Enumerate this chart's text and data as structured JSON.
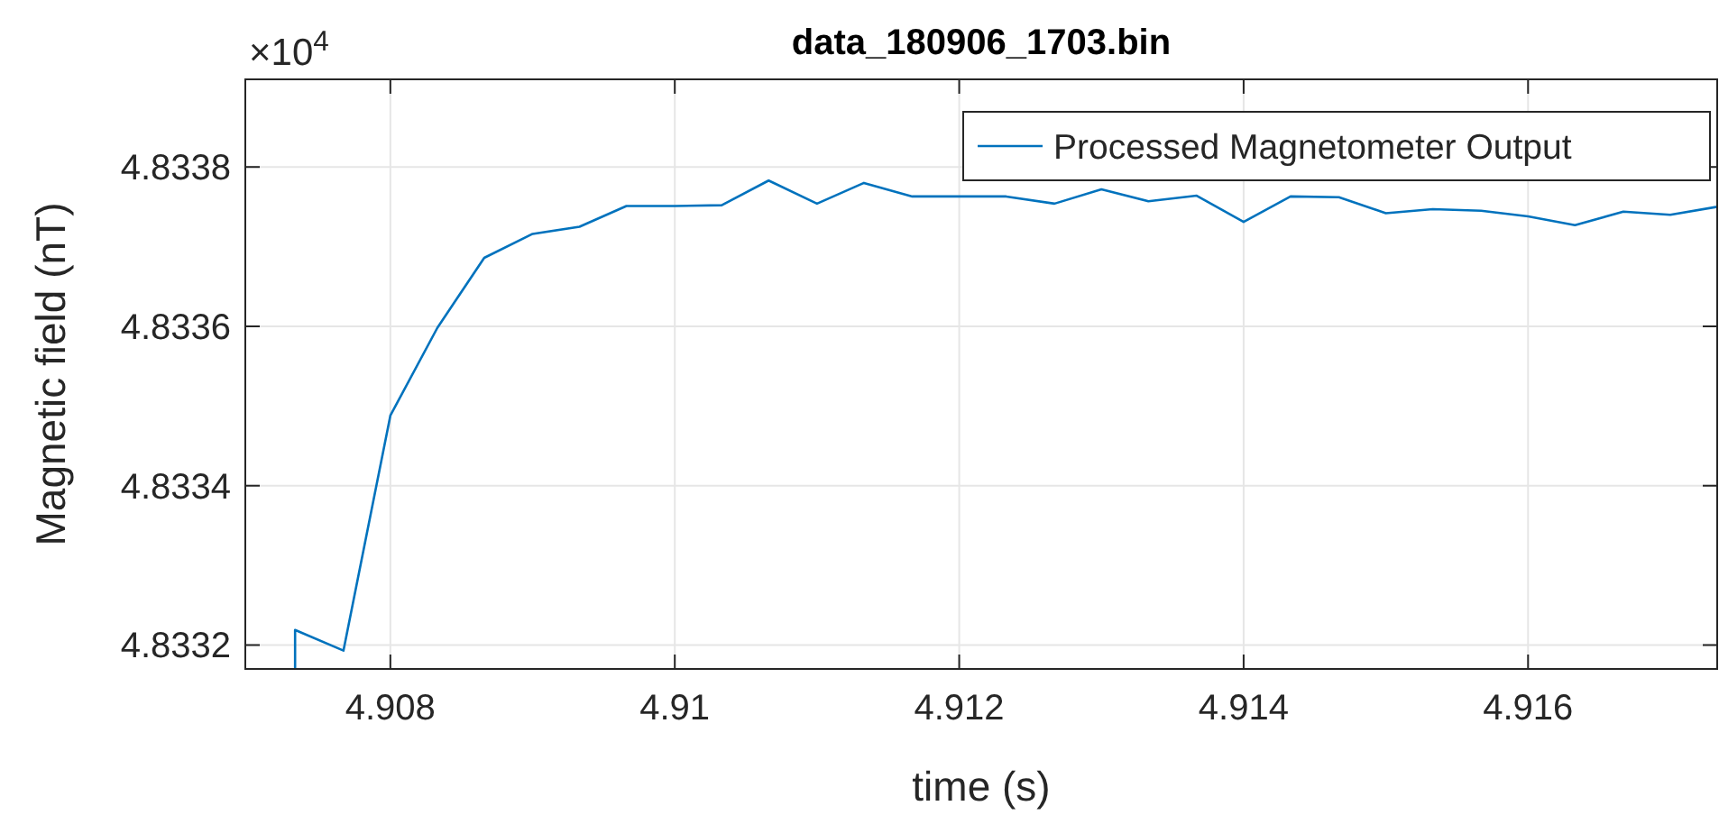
{
  "chart_data": {
    "type": "line",
    "title": "data_180906_1703.bin",
    "xlabel": "time (s)",
    "ylabel": "Magnetic field (nT)",
    "annotations": [
      "×10$^{4}$"
    ],
    "xlim": [
      4.90698,
      4.91733
    ],
    "xticks": [
      4.908,
      4.91,
      4.912,
      4.914,
      4.916
    ],
    "ylim": [
      4.83317,
      4.83391
    ],
    "yticks": [
      4.8332,
      4.8334,
      4.8336,
      4.8338
    ],
    "grid": true,
    "legend": "top right",
    "line_style": "solid",
    "marker": "none",
    "series": [
      {
        "name": "Processed Magnetometer Output",
        "color": "#0072bd",
        "x": [
          4.90733,
          4.90733,
          4.90767,
          4.908,
          4.90833,
          4.90866,
          4.909,
          4.90933,
          4.90966,
          4.91,
          4.91033,
          4.91066,
          4.911,
          4.91133,
          4.91167,
          4.912,
          4.91233,
          4.91267,
          4.913,
          4.91333,
          4.91367,
          4.914,
          4.91433,
          4.91467,
          4.915,
          4.91533,
          4.91567,
          4.916,
          4.91633,
          4.91667,
          4.917,
          4.91733
        ],
        "values": [
          4.83317,
          4.833219,
          4.833193,
          4.833488,
          4.833598,
          4.833686,
          4.833716,
          4.833725,
          4.833751,
          4.833751,
          4.833752,
          4.833783,
          4.833754,
          4.83378,
          4.833763,
          4.833763,
          4.833763,
          4.833754,
          4.833772,
          4.833757,
          4.833764,
          4.833731,
          4.833763,
          4.833762,
          4.833742,
          4.833747,
          4.833745,
          4.833738,
          4.833727,
          4.833744,
          4.83374,
          4.83375
        ]
      }
    ]
  }
}
